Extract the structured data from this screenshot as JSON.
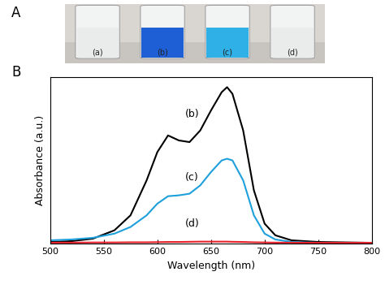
{
  "panel_A": {
    "label": "A",
    "vial_labels": [
      "(a)",
      "(b)",
      "(c)",
      "(d)"
    ]
  },
  "chart_data": {
    "type": "line",
    "panel_label": "B",
    "x_label": "Wavelength (nm)",
    "y_label": "Absorbance (a.u.)",
    "x": [
      500,
      520,
      540,
      560,
      575,
      590,
      600,
      610,
      620,
      630,
      640,
      650,
      660,
      665,
      670,
      680,
      690,
      700,
      710,
      725,
      750,
      800
    ],
    "series": [
      {
        "name": "(b)",
        "color": "#000000",
        "values": [
          0.01,
          0.015,
          0.03,
          0.08,
          0.17,
          0.38,
          0.55,
          0.65,
          0.62,
          0.61,
          0.68,
          0.8,
          0.91,
          0.94,
          0.9,
          0.68,
          0.32,
          0.12,
          0.05,
          0.02,
          0.01,
          0.005
        ]
      },
      {
        "name": "(c)",
        "color": "#1ea0dc",
        "values": [
          0.02,
          0.025,
          0.035,
          0.06,
          0.1,
          0.17,
          0.24,
          0.285,
          0.29,
          0.3,
          0.35,
          0.43,
          0.5,
          0.51,
          0.5,
          0.38,
          0.17,
          0.06,
          0.025,
          0.01,
          0.005,
          0.005
        ]
      },
      {
        "name": "(d)",
        "color": "#e8202a",
        "values": [
          0.006,
          0.006,
          0.007,
          0.007,
          0.008,
          0.008,
          0.009,
          0.01,
          0.01,
          0.011,
          0.012,
          0.012,
          0.012,
          0.012,
          0.011,
          0.01,
          0.008,
          0.007,
          0.006,
          0.006,
          0.005,
          0.005
        ]
      }
    ],
    "xlim": [
      500,
      800
    ],
    "xticks": [
      500,
      550,
      600,
      650,
      700,
      750,
      800
    ],
    "ylim": [
      0,
      1
    ],
    "yticks": [],
    "tick_labels": "x",
    "grid": false
  }
}
